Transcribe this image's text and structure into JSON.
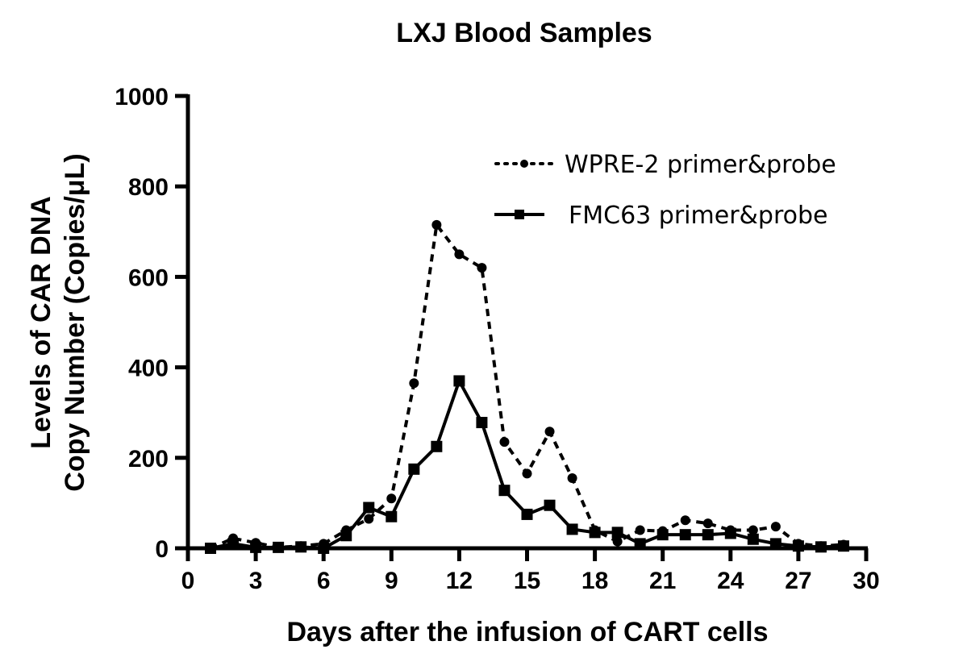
{
  "chart_data": {
    "type": "line",
    "title": "LXJ Blood Samples",
    "xlabel": "Days after the infusion of CART cells",
    "ylabel": [
      "Levels of CAR DNA",
      "Copy Number (Copies/μL)"
    ],
    "xlim": [
      0,
      30
    ],
    "ylim": [
      0,
      1000
    ],
    "xticks": [
      "0",
      "3",
      "6",
      "9",
      "12",
      "15",
      "18",
      "21",
      "24",
      "27",
      "30"
    ],
    "yticks": [
      "0",
      "200",
      "400",
      "600",
      "800",
      "1000"
    ],
    "legend_position": "top-right",
    "grid": false,
    "x": [
      1,
      2,
      3,
      4,
      5,
      6,
      7,
      8,
      9,
      10,
      11,
      12,
      13,
      14,
      15,
      16,
      17,
      18,
      19,
      20,
      21,
      22,
      23,
      24,
      25,
      26,
      27,
      28,
      29
    ],
    "series": [
      {
        "name": "WPRE-2 primer&probe",
        "style": "dotted",
        "marker": "circle",
        "values": [
          0,
          22,
          12,
          2,
          5,
          10,
          40,
          65,
          110,
          365,
          715,
          650,
          620,
          235,
          165,
          258,
          155,
          40,
          15,
          40,
          38,
          62,
          55,
          40,
          40,
          48,
          10,
          5,
          8
        ]
      },
      {
        "name": "FMC63 primer&probe",
        "style": "solid",
        "marker": "square",
        "values": [
          0,
          10,
          2,
          2,
          3,
          0,
          28,
          90,
          70,
          175,
          225,
          370,
          278,
          128,
          75,
          95,
          42,
          35,
          35,
          10,
          30,
          30,
          30,
          33,
          20,
          10,
          5,
          3,
          5
        ]
      }
    ]
  }
}
